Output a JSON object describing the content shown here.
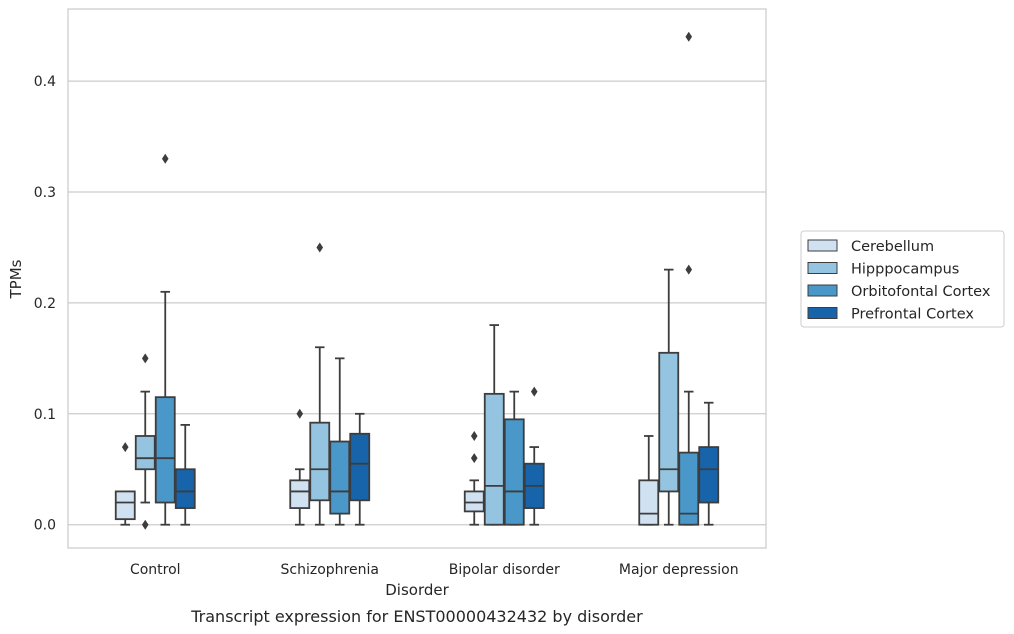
{
  "chart_data": {
    "type": "box",
    "caption": "Transcript expression for ENST00000432432 by disorder",
    "xlabel": "Disorder",
    "ylabel": "TPMs",
    "ylim": [
      -0.021,
      0.465
    ],
    "yticks": [
      0.0,
      0.1,
      0.2,
      0.3,
      0.4
    ],
    "ytick_labels": [
      "0.0",
      "0.1",
      "0.2",
      "0.3",
      "0.4"
    ],
    "grid": true,
    "legend_position": "right",
    "categories": [
      "Control",
      "Schizophrenia",
      "Bipolar disorder",
      "Major depression"
    ],
    "series": [
      {
        "name": "Cerebellum",
        "color": "#d0e1f2",
        "boxes": [
          {
            "whislo": 0.0,
            "q1": 0.005,
            "med": 0.02,
            "q3": 0.03,
            "whishi": 0.03,
            "fliers": [
              0.07
            ]
          },
          {
            "whislo": 0.0,
            "q1": 0.015,
            "med": 0.03,
            "q3": 0.04,
            "whishi": 0.05,
            "fliers": [
              0.1
            ]
          },
          {
            "whislo": 0.0,
            "q1": 0.012,
            "med": 0.02,
            "q3": 0.03,
            "whishi": 0.04,
            "fliers": [
              0.06,
              0.08
            ]
          },
          {
            "whislo": 0.0,
            "q1": 0.0,
            "med": 0.01,
            "q3": 0.04,
            "whishi": 0.08,
            "fliers": []
          }
        ]
      },
      {
        "name": "Hipppocampus",
        "color": "#94c4df",
        "boxes": [
          {
            "whislo": 0.02,
            "q1": 0.05,
            "med": 0.06,
            "q3": 0.08,
            "whishi": 0.12,
            "fliers": [
              0.15,
              0.0
            ]
          },
          {
            "whislo": 0.0,
            "q1": 0.022,
            "med": 0.05,
            "q3": 0.092,
            "whishi": 0.16,
            "fliers": [
              0.25
            ]
          },
          {
            "whislo": 0.0,
            "q1": 0.0,
            "med": 0.035,
            "q3": 0.118,
            "whishi": 0.18,
            "fliers": []
          },
          {
            "whislo": 0.0,
            "q1": 0.03,
            "med": 0.05,
            "q3": 0.155,
            "whishi": 0.23,
            "fliers": []
          }
        ]
      },
      {
        "name": "Orbitofontal Cortex",
        "color": "#4a98c9",
        "boxes": [
          {
            "whislo": 0.0,
            "q1": 0.02,
            "med": 0.06,
            "q3": 0.115,
            "whishi": 0.21,
            "fliers": [
              0.33
            ]
          },
          {
            "whislo": 0.0,
            "q1": 0.01,
            "med": 0.03,
            "q3": 0.075,
            "whishi": 0.15,
            "fliers": []
          },
          {
            "whislo": 0.0,
            "q1": 0.0,
            "med": 0.03,
            "q3": 0.095,
            "whishi": 0.12,
            "fliers": []
          },
          {
            "whislo": 0.0,
            "q1": 0.0,
            "med": 0.01,
            "q3": 0.065,
            "whishi": 0.12,
            "fliers": [
              0.23,
              0.44
            ]
          }
        ]
      },
      {
        "name": "Prefrontal Cortex",
        "color": "#1764ab",
        "boxes": [
          {
            "whislo": 0.0,
            "q1": 0.015,
            "med": 0.03,
            "q3": 0.05,
            "whishi": 0.09,
            "fliers": []
          },
          {
            "whislo": 0.0,
            "q1": 0.022,
            "med": 0.055,
            "q3": 0.082,
            "whishi": 0.1,
            "fliers": []
          },
          {
            "whislo": 0.0,
            "q1": 0.015,
            "med": 0.035,
            "q3": 0.055,
            "whishi": 0.07,
            "fliers": [
              0.12
            ]
          },
          {
            "whislo": 0.0,
            "q1": 0.02,
            "med": 0.05,
            "q3": 0.07,
            "whishi": 0.11,
            "fliers": []
          }
        ]
      }
    ]
  }
}
